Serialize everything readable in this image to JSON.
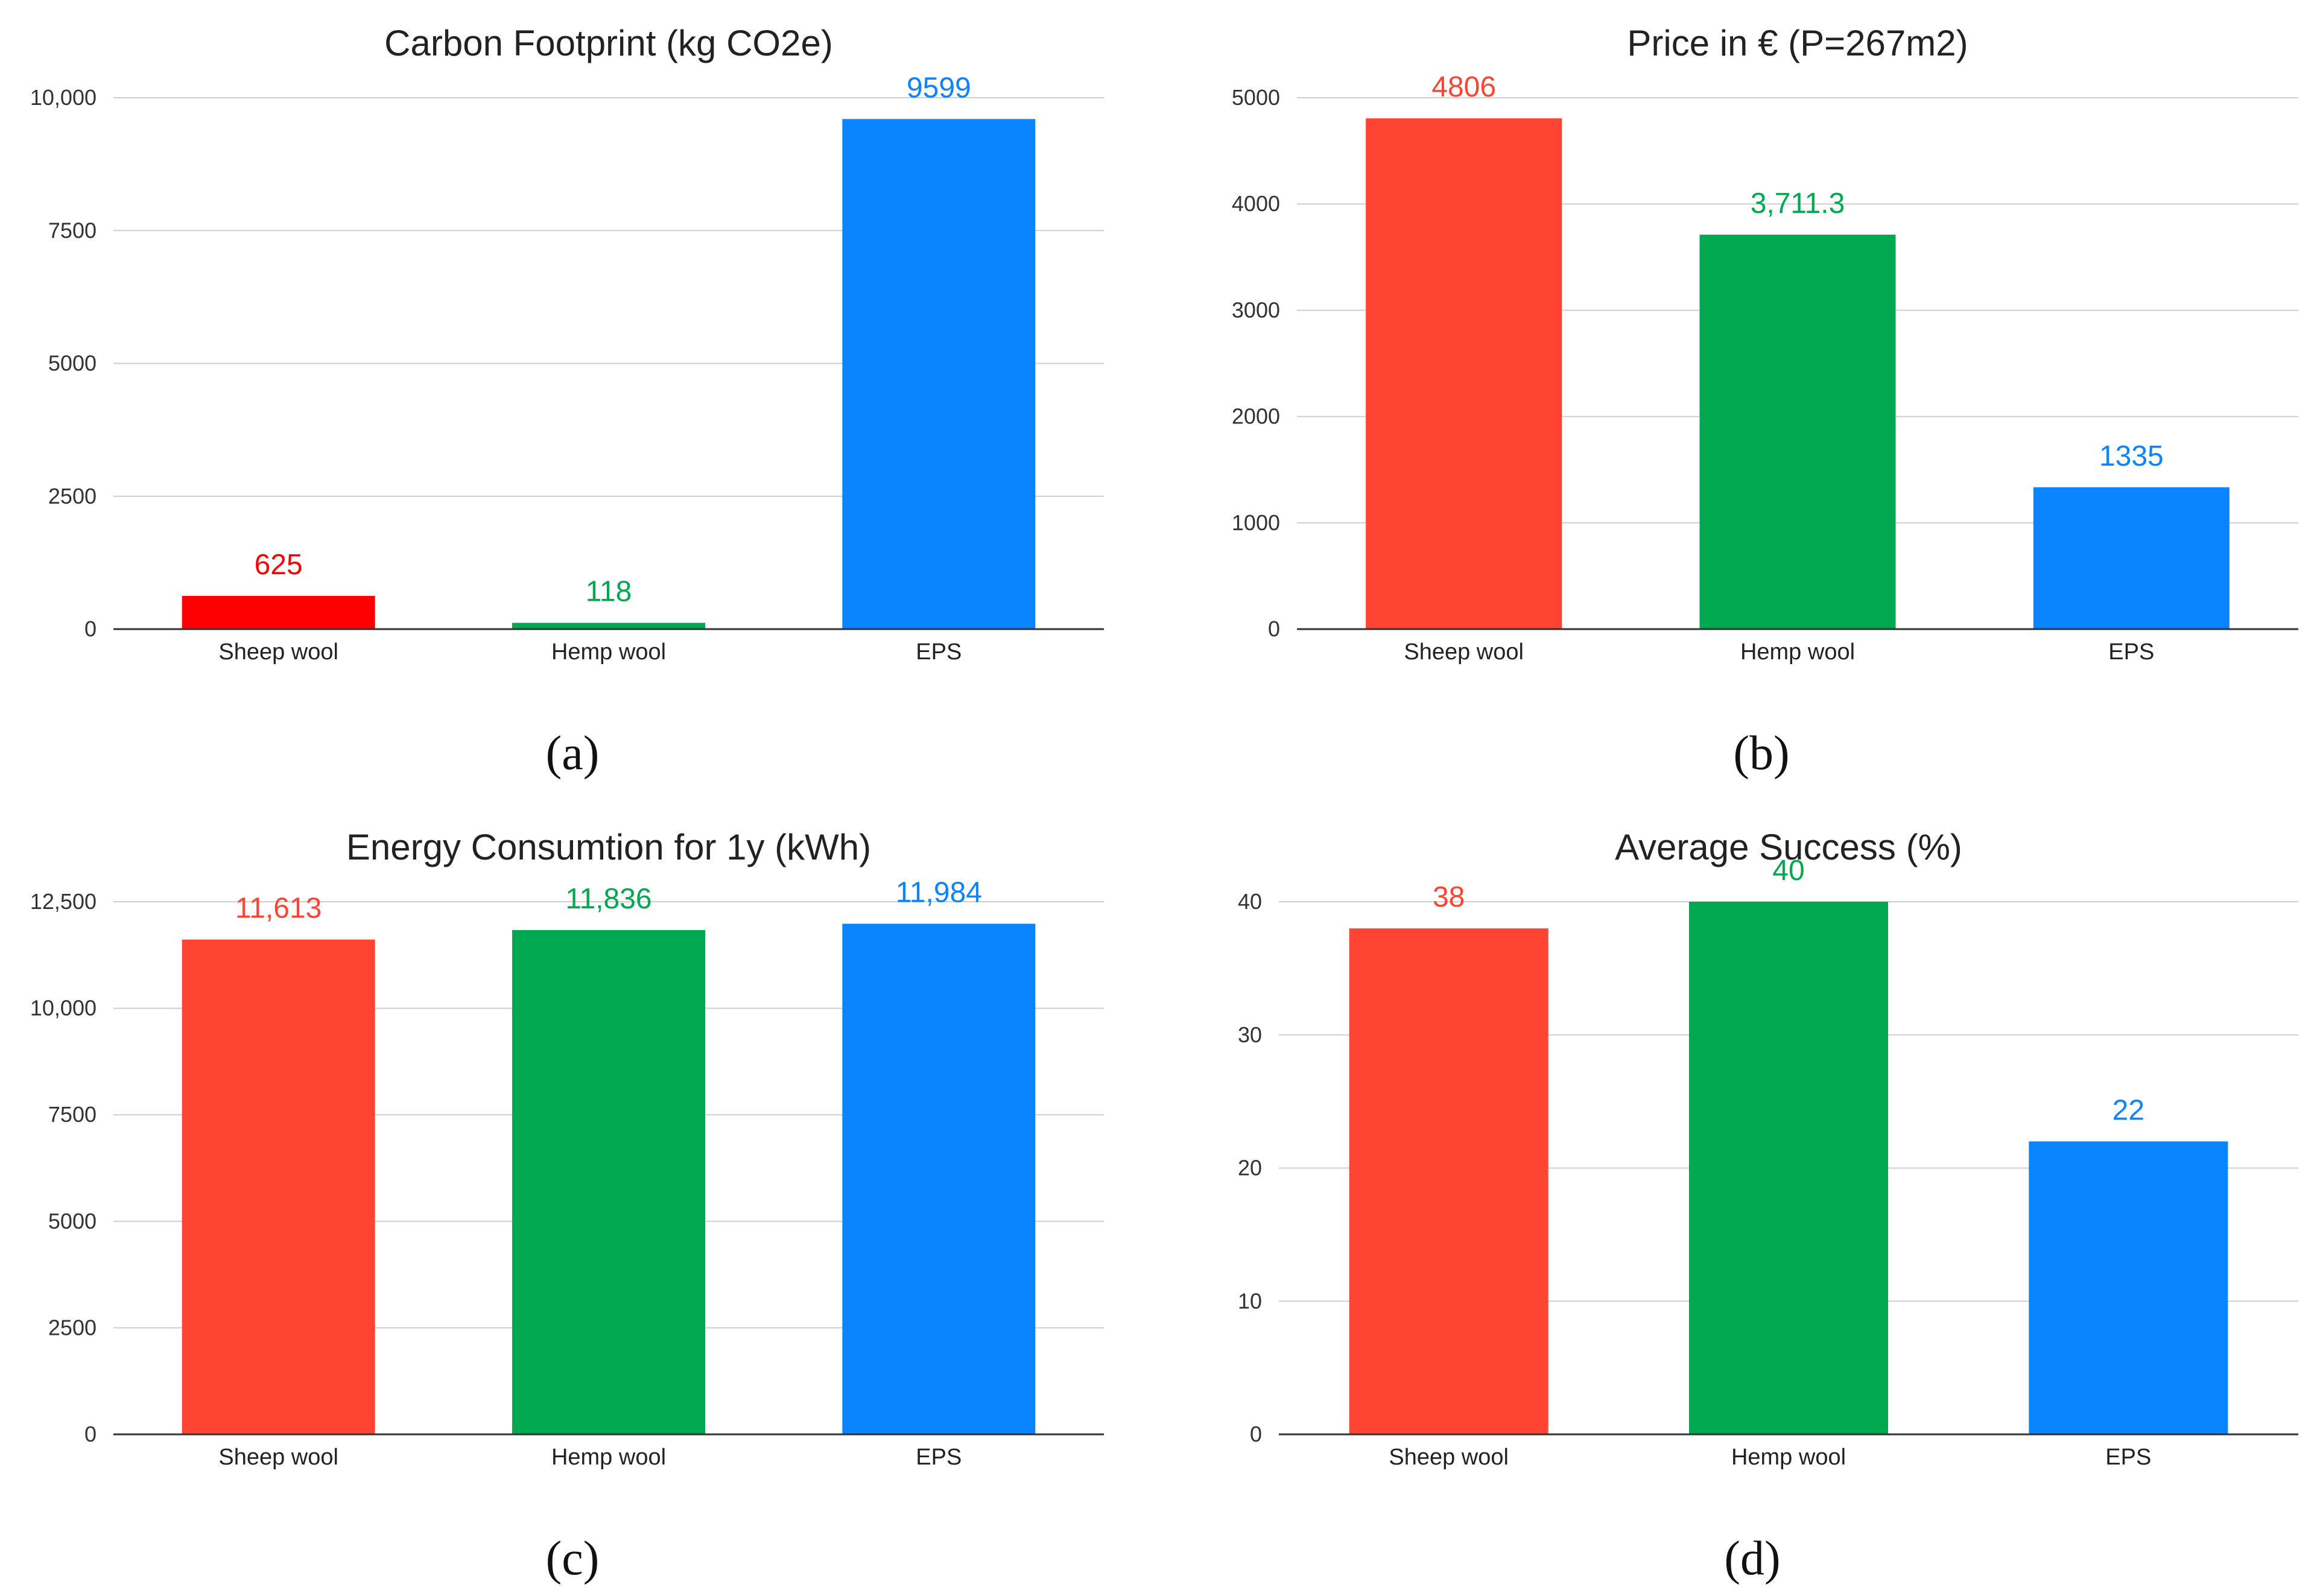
{
  "chart_data": [
    {
      "type": "bar",
      "title": "Carbon Footprint (kg CO2e)",
      "caption": "(a)",
      "categories": [
        "Sheep wool",
        "Hemp wool",
        "EPS"
      ],
      "values": [
        625,
        118,
        9599
      ],
      "labels": [
        "625",
        "118",
        "9599"
      ],
      "colors": [
        "#ff0000",
        "#00a84f",
        "#0a84ff"
      ],
      "yticks": [
        0,
        2500,
        5000,
        7500,
        10000
      ],
      "ytick_labels": [
        "0",
        "2500",
        "5000",
        "7500",
        "10,000"
      ],
      "ylim": [
        0,
        10000
      ],
      "grid": true,
      "xlabel": "",
      "ylabel": ""
    },
    {
      "type": "bar",
      "title": "Price in € (P=267m2)",
      "caption": "(b)",
      "categories": [
        "Sheep wool",
        "Hemp wool",
        "EPS"
      ],
      "values": [
        4806,
        3711.3,
        1335
      ],
      "labels": [
        "4806",
        "3,711.3",
        "1335"
      ],
      "colors": [
        "#ff4433",
        "#00a84f",
        "#0a84ff"
      ],
      "yticks": [
        0,
        1000,
        2000,
        3000,
        4000,
        5000
      ],
      "ytick_labels": [
        "0",
        "1000",
        "2000",
        "3000",
        "4000",
        "5000"
      ],
      "ylim": [
        0,
        5000
      ],
      "grid": true,
      "xlabel": "",
      "ylabel": ""
    },
    {
      "type": "bar",
      "title": "Energy Consumtion for 1y (kWh)",
      "caption": "(c)",
      "categories": [
        "Sheep wool",
        "Hemp wool",
        "EPS"
      ],
      "values": [
        11613,
        11836,
        11984
      ],
      "labels": [
        "11,613",
        "11,836",
        "11,984"
      ],
      "colors": [
        "#ff4433",
        "#00a84f",
        "#0a84ff"
      ],
      "yticks": [
        0,
        2500,
        5000,
        7500,
        10000,
        12500
      ],
      "ytick_labels": [
        "0",
        "2500",
        "5000",
        "7500",
        "10,000",
        "12,500"
      ],
      "ylim": [
        0,
        12500
      ],
      "grid": true,
      "xlabel": "",
      "ylabel": ""
    },
    {
      "type": "bar",
      "title": "Average Success (%)",
      "caption": "(d)",
      "categories": [
        "Sheep wool",
        "Hemp wool",
        "EPS"
      ],
      "values": [
        38,
        40,
        22
      ],
      "labels": [
        "38",
        "40",
        "22"
      ],
      "colors": [
        "#ff4433",
        "#00a84f",
        "#0a84ff"
      ],
      "yticks": [
        0,
        10,
        20,
        30,
        40
      ],
      "ytick_labels": [
        "0",
        "10",
        "20",
        "30",
        "40"
      ],
      "ylim": [
        0,
        40
      ],
      "grid": true,
      "xlabel": "",
      "ylabel": ""
    }
  ]
}
